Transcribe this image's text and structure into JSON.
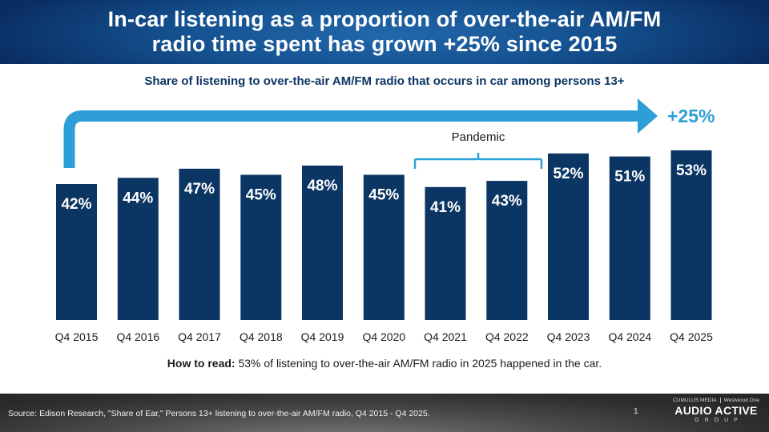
{
  "header": {
    "title_line1": "In-car listening as a proportion of over-the-air AM/FM",
    "title_line2": "radio time spent has grown +25% since 2015"
  },
  "subtitle": "Share of listening to over-the-air AM/FM radio that occurs in car among persons 13+",
  "colors": {
    "bar": "#0b3563",
    "arrow": "#2e9fd6",
    "bracket": "#2e9fd6",
    "growth_label": "#2e9fd6",
    "bar_label": "#ffffff"
  },
  "chart_data": {
    "type": "bar",
    "title": "Share of listening to over-the-air AM/FM radio that occurs in car among persons 13+",
    "xlabel": "",
    "ylabel": "",
    "categories": [
      "Q4 2015",
      "Q4 2016",
      "Q4 2017",
      "Q4 2018",
      "Q4 2019",
      "Q4 2020",
      "Q4 2021",
      "Q4 2022",
      "Q4 2023",
      "Q4 2024",
      "Q4 2025"
    ],
    "values": [
      42,
      44,
      47,
      45,
      48,
      45,
      41,
      43,
      52,
      51,
      53
    ],
    "value_labels": [
      "42%",
      "44%",
      "47%",
      "45%",
      "48%",
      "45%",
      "41%",
      "43%",
      "52%",
      "51%",
      "53%"
    ],
    "unit": "%",
    "grid": false,
    "legend": "none",
    "annotations": {
      "growth_arrow_label": "+25%",
      "growth_arrow_from": "Q4 2015",
      "growth_arrow_to": "Q4 2025",
      "bracket_label": "Pandemic",
      "bracket_categories": [
        "Q4 2021",
        "Q4 2022"
      ]
    }
  },
  "how_to_read": {
    "label": "How to read:",
    "text": " 53% of listening to over-the-air AM/FM radio in 2025 happened in the car."
  },
  "footer": {
    "source": "Source: Edison Research, \"Share of Ear,\" Persons 13+ listening to over-the-air AM/FM radio, Q4 2015 - Q4 2025.",
    "page_number": "1",
    "logo": {
      "partner_left": "CUMULUS MEDIA",
      "partner_right": "Westwood One",
      "brand": "AUDIO ACTIVE",
      "group": "GROUP"
    }
  }
}
